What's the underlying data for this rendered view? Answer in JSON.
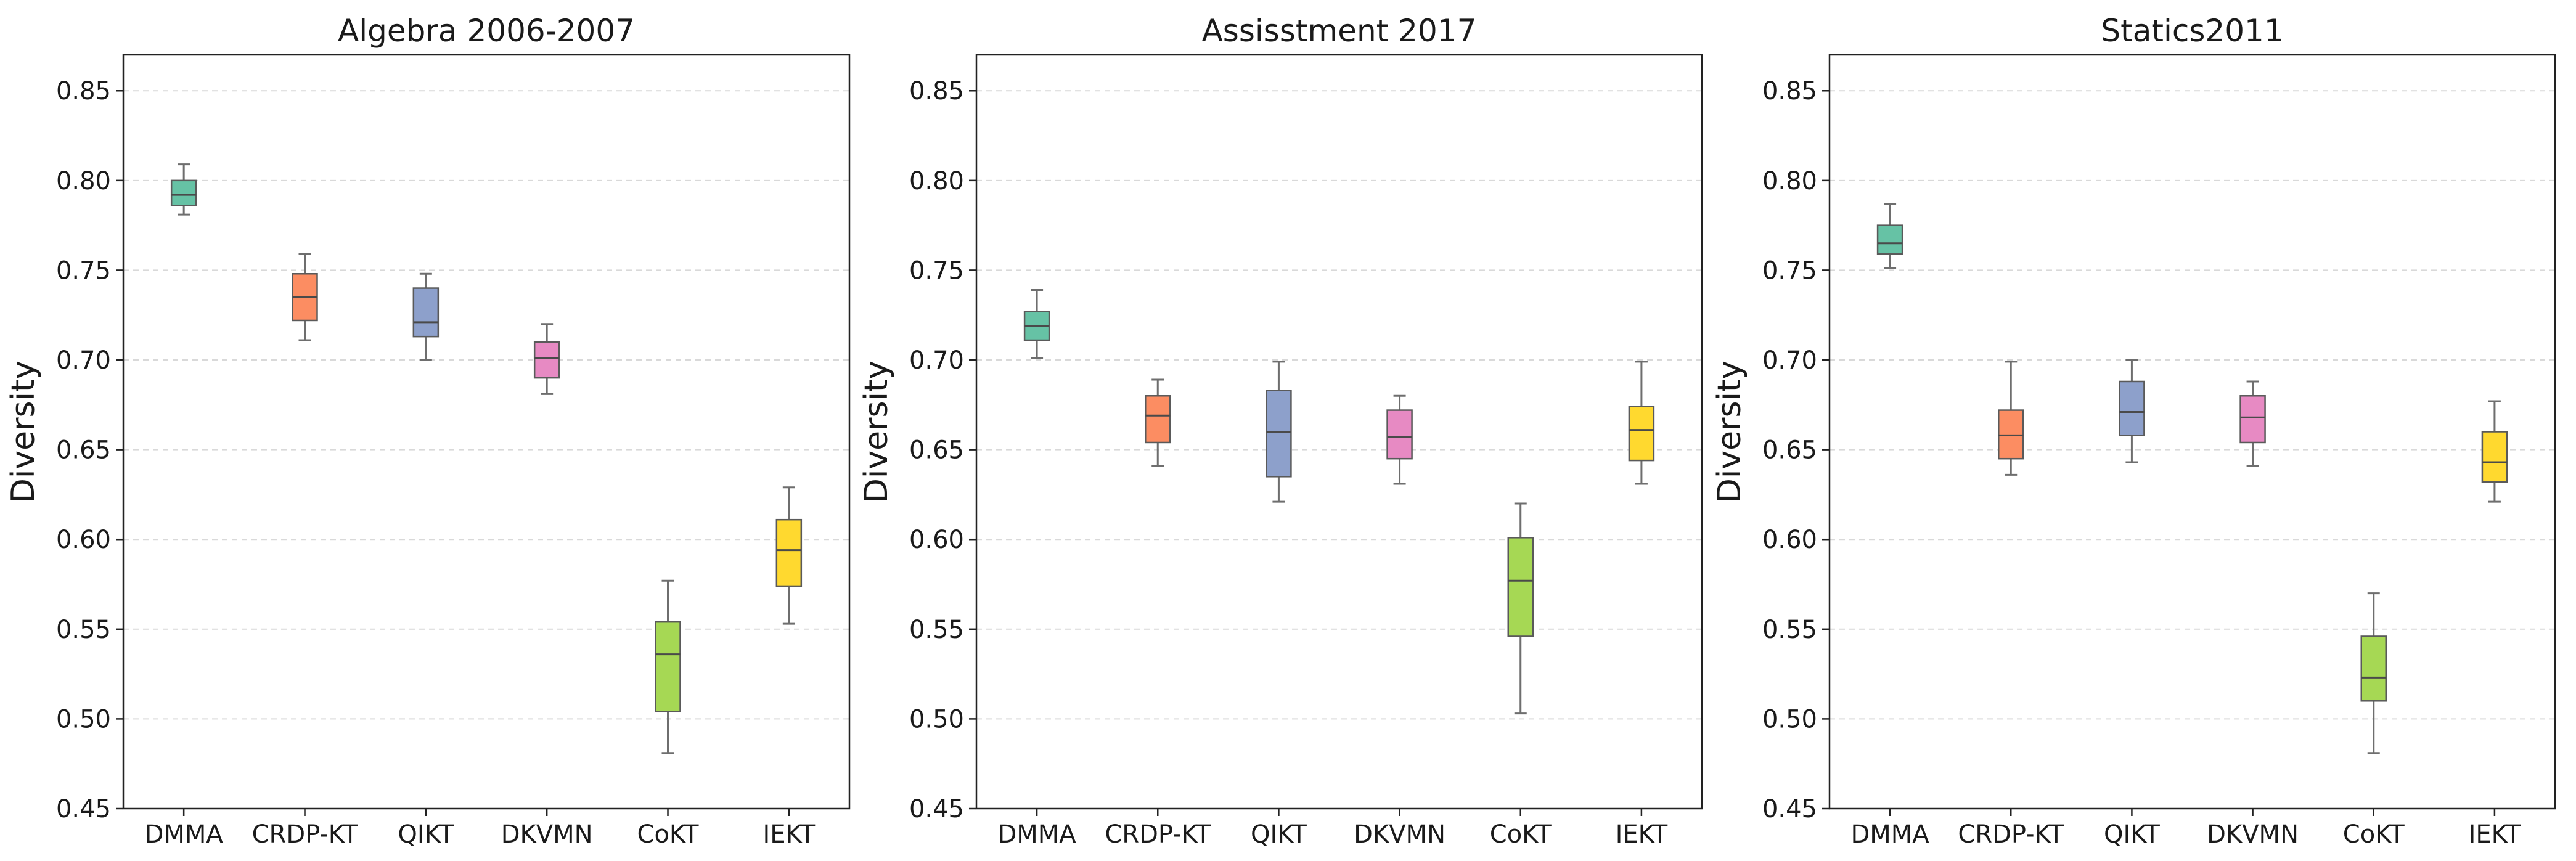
{
  "chart_data": [
    {
      "type": "box",
      "title": "Algebra 2006-2007",
      "ylabel": "Diversity",
      "ylim": [
        0.45,
        0.87
      ],
      "yticks": [
        "0.45",
        "0.50",
        "0.55",
        "0.60",
        "0.65",
        "0.70",
        "0.75",
        "0.80",
        "0.85"
      ],
      "grid": "y",
      "categories": [
        "DMMA",
        "CRDP-KT",
        "QIKT",
        "DKVMN",
        "CoKT",
        "IEKT"
      ],
      "colors": [
        "#66c2a5",
        "#fc8d62",
        "#8da0cb",
        "#e78ac3",
        "#a6d854",
        "#ffd92f"
      ],
      "boxes": [
        {
          "min": 0.781,
          "q1": 0.786,
          "median": 0.792,
          "q3": 0.8,
          "max": 0.809
        },
        {
          "min": 0.711,
          "q1": 0.722,
          "median": 0.735,
          "q3": 0.748,
          "max": 0.759
        },
        {
          "min": 0.7,
          "q1": 0.713,
          "median": 0.721,
          "q3": 0.74,
          "max": 0.748
        },
        {
          "min": 0.681,
          "q1": 0.69,
          "median": 0.701,
          "q3": 0.71,
          "max": 0.72
        },
        {
          "min": 0.481,
          "q1": 0.504,
          "median": 0.536,
          "q3": 0.554,
          "max": 0.577
        },
        {
          "min": 0.553,
          "q1": 0.574,
          "median": 0.594,
          "q3": 0.611,
          "max": 0.629
        }
      ]
    },
    {
      "type": "box",
      "title": "Assisstment 2017",
      "ylabel": "Diversity",
      "ylim": [
        0.45,
        0.87
      ],
      "yticks": [
        "0.45",
        "0.50",
        "0.55",
        "0.60",
        "0.65",
        "0.70",
        "0.75",
        "0.80",
        "0.85"
      ],
      "grid": "y",
      "categories": [
        "DMMA",
        "CRDP-KT",
        "QIKT",
        "DKVMN",
        "CoKT",
        "IEKT"
      ],
      "colors": [
        "#66c2a5",
        "#fc8d62",
        "#8da0cb",
        "#e78ac3",
        "#a6d854",
        "#ffd92f"
      ],
      "boxes": [
        {
          "min": 0.701,
          "q1": 0.711,
          "median": 0.719,
          "q3": 0.727,
          "max": 0.739
        },
        {
          "min": 0.641,
          "q1": 0.654,
          "median": 0.669,
          "q3": 0.68,
          "max": 0.689
        },
        {
          "min": 0.621,
          "q1": 0.635,
          "median": 0.66,
          "q3": 0.683,
          "max": 0.699
        },
        {
          "min": 0.631,
          "q1": 0.645,
          "median": 0.657,
          "q3": 0.672,
          "max": 0.68
        },
        {
          "min": 0.503,
          "q1": 0.546,
          "median": 0.577,
          "q3": 0.601,
          "max": 0.62
        },
        {
          "min": 0.631,
          "q1": 0.644,
          "median": 0.661,
          "q3": 0.674,
          "max": 0.699
        }
      ]
    },
    {
      "type": "box",
      "title": "Statics2011",
      "ylabel": "Diversity",
      "ylim": [
        0.45,
        0.87
      ],
      "yticks": [
        "0.45",
        "0.50",
        "0.55",
        "0.60",
        "0.65",
        "0.70",
        "0.75",
        "0.80",
        "0.85"
      ],
      "grid": "y",
      "categories": [
        "DMMA",
        "CRDP-KT",
        "QIKT",
        "DKVMN",
        "CoKT",
        "IEKT"
      ],
      "colors": [
        "#66c2a5",
        "#fc8d62",
        "#8da0cb",
        "#e78ac3",
        "#a6d854",
        "#ffd92f"
      ],
      "boxes": [
        {
          "min": 0.751,
          "q1": 0.759,
          "median": 0.765,
          "q3": 0.775,
          "max": 0.787
        },
        {
          "min": 0.636,
          "q1": 0.645,
          "median": 0.658,
          "q3": 0.672,
          "max": 0.699
        },
        {
          "min": 0.643,
          "q1": 0.658,
          "median": 0.671,
          "q3": 0.688,
          "max": 0.7
        },
        {
          "min": 0.641,
          "q1": 0.654,
          "median": 0.668,
          "q3": 0.68,
          "max": 0.688
        },
        {
          "min": 0.481,
          "q1": 0.51,
          "median": 0.523,
          "q3": 0.546,
          "max": 0.57
        },
        {
          "min": 0.621,
          "q1": 0.632,
          "median": 0.643,
          "q3": 0.66,
          "max": 0.677
        }
      ]
    }
  ]
}
